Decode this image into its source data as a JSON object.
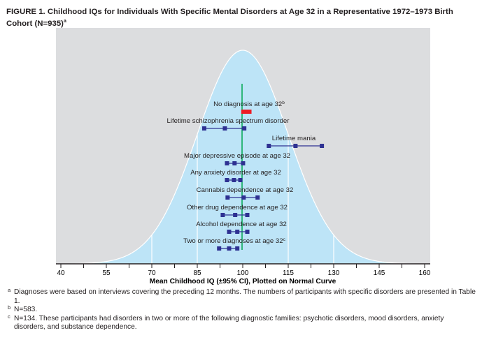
{
  "title": "FIGURE 1. Childhood IQs for Individuals With Specific Mental Disorders at Age 32 in a Representative 1972–1973 Birth Cohort (N=935)",
  "title_sup": "a",
  "chart_data": {
    "type": "scatter",
    "subtype": "point estimates with 95% CI error bars over normal curve",
    "xlabel": "Mean Childhood IQ (±95% CI), Plotted on Normal Curve",
    "xlim": [
      40,
      160
    ],
    "xticks": [
      40,
      55,
      70,
      85,
      100,
      115,
      130,
      145,
      160
    ],
    "reference_line": 100,
    "normal_curve": {
      "mean": 100,
      "sd": 15
    },
    "grid_lines": [
      70,
      85,
      115,
      130
    ],
    "colors": {
      "background": "#dcdddf",
      "curve_fill": "#bde4f7",
      "points": "#2e3192",
      "highlight": "#ed1c24",
      "reference": "#00a651"
    },
    "series": [
      {
        "name": "No diagnosis at age 32",
        "sup": "b",
        "lower": 100.2,
        "mean": 101.2,
        "upper": 102.2,
        "highlight": true
      },
      {
        "name": "Lifetime schizophrenia spectrum disorder",
        "sup": "",
        "lower": 87.3,
        "mean": 94.1,
        "upper": 100.5
      },
      {
        "name": "Lifetime mania",
        "sup": "",
        "lower": 108.6,
        "mean": 117.4,
        "upper": 126.1
      },
      {
        "name": "Major depressive episode at age 32",
        "sup": "",
        "lower": 94.8,
        "mean": 97.3,
        "upper": 100.1
      },
      {
        "name": "Any anxiety disorder at age 32",
        "sup": "",
        "lower": 94.8,
        "mean": 97.1,
        "upper": 99.2
      },
      {
        "name": "Cannabis dependence at age 32",
        "sup": "",
        "lower": 95.0,
        "mean": 100.3,
        "upper": 104.9
      },
      {
        "name": "Other drug dependence at age 32",
        "sup": "",
        "lower": 93.4,
        "mean": 97.5,
        "upper": 101.5
      },
      {
        "name": "Alcohol dependence at age 32",
        "sup": "",
        "lower": 95.5,
        "mean": 98.2,
        "upper": 101.5
      },
      {
        "name": "Two or more diagnoses at age 32",
        "sup": "c",
        "lower": 92.2,
        "mean": 95.5,
        "upper": 98.2
      }
    ]
  },
  "footnotes": [
    {
      "mark": "a",
      "text": "Diagnoses were based on interviews covering the preceding 12 months. The numbers of participants with specific disorders are presented in Table 1."
    },
    {
      "mark": "b",
      "text": "N=583."
    },
    {
      "mark": "c",
      "text": "N=134. These participants had disorders in two or more of the following diagnostic families: psychotic disorders, mood disorders, anxiety disorders, and substance dependence."
    }
  ]
}
